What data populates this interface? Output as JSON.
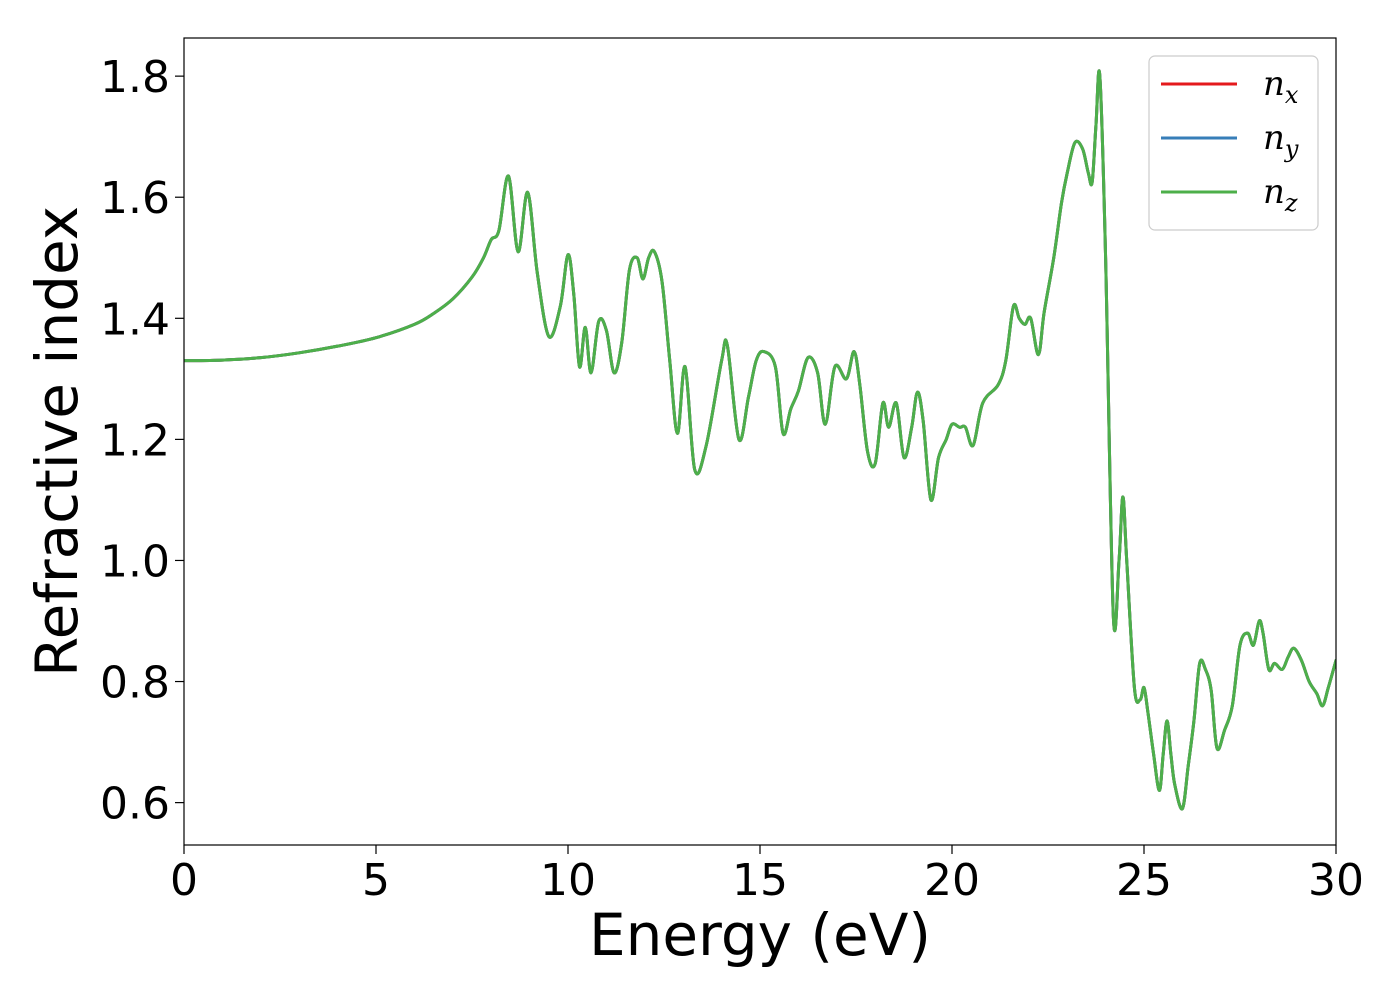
{
  "chart_data": {
    "type": "line",
    "xlabel": "Energy (eV)",
    "ylabel": "Refractive index",
    "xlim": [
      0,
      30
    ],
    "ylim": [
      0.53,
      1.863
    ],
    "xticks": [
      0,
      5,
      10,
      15,
      20,
      25,
      30
    ],
    "yticks": [
      0.6,
      0.8,
      1.0,
      1.2,
      1.4,
      1.6,
      1.8
    ],
    "grid": false,
    "legend_position": "top-right",
    "series": [
      {
        "name": "n_x",
        "label_base": "n",
        "label_sub": "x",
        "color": "#e41a1c"
      },
      {
        "name": "n_y",
        "label_base": "n",
        "label_sub": "y",
        "color": "#377eb8"
      },
      {
        "name": "n_z",
        "label_base": "n",
        "label_sub": "z",
        "color": "#4daf4a"
      }
    ],
    "shared_points": {
      "x": [
        0,
        1,
        2,
        3,
        4,
        5,
        6,
        6.5,
        7,
        7.5,
        7.8,
        8.0,
        8.2,
        8.45,
        8.7,
        8.95,
        9.2,
        9.5,
        9.8,
        10.0,
        10.15,
        10.3,
        10.45,
        10.6,
        10.8,
        11.0,
        11.2,
        11.4,
        11.6,
        11.8,
        11.95,
        12.1,
        12.25,
        12.45,
        12.65,
        12.85,
        13.05,
        13.3,
        13.6,
        14.0,
        14.15,
        14.45,
        14.7,
        14.9,
        15.1,
        15.4,
        15.6,
        15.8,
        16.0,
        16.25,
        16.5,
        16.7,
        16.95,
        17.25,
        17.45,
        17.6,
        17.8,
        18.0,
        18.2,
        18.35,
        18.55,
        18.75,
        18.95,
        19.1,
        19.25,
        19.45,
        19.65,
        19.85,
        20.0,
        20.2,
        20.35,
        20.55,
        20.8,
        21.2,
        21.4,
        21.6,
        21.75,
        21.9,
        22.05,
        22.25,
        22.4,
        22.65,
        22.85,
        23.0,
        23.2,
        23.4,
        23.55,
        23.65,
        23.75,
        23.85,
        24.0,
        24.2,
        24.35,
        24.45,
        24.55,
        24.75,
        24.9,
        25.0,
        25.1,
        25.25,
        25.4,
        25.5,
        25.6,
        25.7,
        25.8,
        26.0,
        26.15,
        26.3,
        26.45,
        26.6,
        26.75,
        26.9,
        27.1,
        27.3,
        27.5,
        27.7,
        27.85,
        28.0,
        28.1,
        28.25,
        28.4,
        28.6,
        28.75,
        28.9,
        29.1,
        29.3,
        29.5,
        29.65,
        29.8,
        30.0
      ],
      "y": [
        1.33,
        1.331,
        1.335,
        1.343,
        1.354,
        1.368,
        1.39,
        1.408,
        1.432,
        1.468,
        1.5,
        1.53,
        1.545,
        1.635,
        1.51,
        1.608,
        1.475,
        1.37,
        1.42,
        1.505,
        1.44,
        1.32,
        1.385,
        1.31,
        1.395,
        1.38,
        1.31,
        1.36,
        1.48,
        1.5,
        1.465,
        1.5,
        1.51,
        1.46,
        1.33,
        1.21,
        1.32,
        1.15,
        1.19,
        1.33,
        1.355,
        1.2,
        1.27,
        1.33,
        1.345,
        1.32,
        1.21,
        1.25,
        1.28,
        1.335,
        1.31,
        1.225,
        1.32,
        1.3,
        1.345,
        1.29,
        1.18,
        1.16,
        1.26,
        1.22,
        1.26,
        1.17,
        1.22,
        1.278,
        1.23,
        1.1,
        1.17,
        1.2,
        1.225,
        1.22,
        1.22,
        1.19,
        1.26,
        1.29,
        1.33,
        1.42,
        1.4,
        1.39,
        1.4,
        1.34,
        1.41,
        1.5,
        1.59,
        1.64,
        1.69,
        1.68,
        1.64,
        1.625,
        1.72,
        1.8,
        1.5,
        0.91,
        1.0,
        1.105,
        1.0,
        0.79,
        0.77,
        0.79,
        0.75,
        0.68,
        0.62,
        0.68,
        0.735,
        0.68,
        0.63,
        0.59,
        0.66,
        0.735,
        0.83,
        0.82,
        0.785,
        0.69,
        0.72,
        0.76,
        0.86,
        0.88,
        0.86,
        0.9,
        0.88,
        0.82,
        0.83,
        0.82,
        0.84,
        0.855,
        0.835,
        0.8,
        0.78,
        0.76,
        0.79,
        0.835
      ]
    }
  }
}
